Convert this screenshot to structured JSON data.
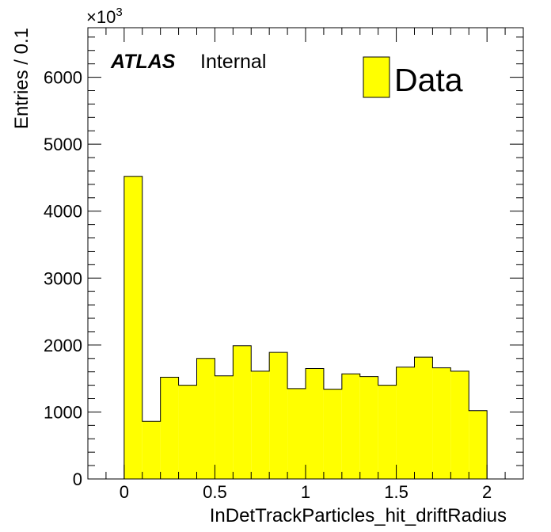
{
  "chart_data": {
    "type": "bar",
    "style": "histogram",
    "bin_width": 0.1,
    "bin_edges": [
      0.0,
      0.1,
      0.2,
      0.3,
      0.4,
      0.5,
      0.6,
      0.7,
      0.8,
      0.9,
      1.0,
      1.1,
      1.2,
      1.3,
      1.4,
      1.5,
      1.6,
      1.7,
      1.8,
      1.9,
      2.0
    ],
    "values": [
      4520,
      860,
      1520,
      1400,
      1800,
      1540,
      1990,
      1610,
      1890,
      1350,
      1650,
      1340,
      1570,
      1530,
      1400,
      1670,
      1820,
      1660,
      1610,
      1020
    ],
    "series": [
      {
        "name": "Data",
        "color": "#ffff00"
      }
    ],
    "xlabel": "InDetTrackParticles_hit_driftRadius",
    "ylabel": "Entries / 0.1",
    "xlim": [
      -0.2,
      2.2
    ],
    "ylim": [
      0,
      6740
    ],
    "y_multiplier": "×10³",
    "x_ticks": [
      "0",
      "0.5",
      "1",
      "1.5",
      "2"
    ],
    "y_ticks": [
      "0",
      "1000",
      "2000",
      "3000",
      "4000",
      "5000",
      "6000"
    ],
    "legend_position": "top-right",
    "grid": false
  },
  "labels": {
    "experiment": "ATLAS",
    "status": "Internal",
    "multiplier_base": "×10",
    "multiplier_exp": "3",
    "legend_entry": "Data"
  },
  "colors": {
    "fill": "#ffff00",
    "line": "#000000",
    "background": "#ffffff"
  }
}
